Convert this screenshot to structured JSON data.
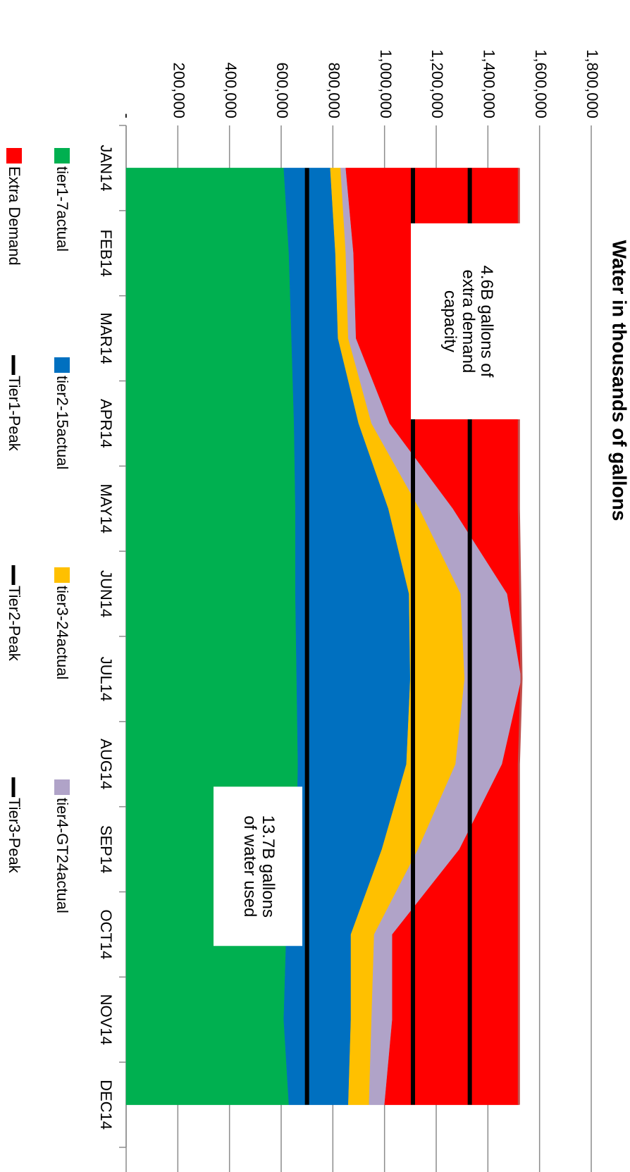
{
  "chart_data": {
    "type": "area",
    "stacked": true,
    "title": "Water in thousands of gallons",
    "categories": [
      "JAN14",
      "FEB14",
      "MAR14",
      "APR14",
      "MAY14",
      "JUN14",
      "JUL14",
      "AUG14",
      "SEP14",
      "OCT14",
      "NOV14",
      "DEC14"
    ],
    "ylim": [
      0,
      1800000
    ],
    "yticks": [
      0,
      200000,
      400000,
      600000,
      800000,
      1000000,
      1200000,
      1400000,
      1600000,
      1800000
    ],
    "ytick_labels": [
      "-",
      "200,000",
      "400,000",
      "600,000",
      "800,000",
      "1,000,000",
      "1,200,000",
      "1,400,000",
      "1,600,000",
      "1,800,000"
    ],
    "grid": true,
    "legend_position": "bottom",
    "series": [
      {
        "name": "tier1-7actual",
        "color": "#00B050",
        "values": [
          610000,
          630000,
          640000,
          650000,
          655000,
          655000,
          660000,
          665000,
          660000,
          620000,
          610000,
          630000
        ]
      },
      {
        "name": "tier2-15actual",
        "color": "#0070C0",
        "values": [
          180000,
          180000,
          180000,
          250000,
          360000,
          440000,
          440000,
          420000,
          330000,
          250000,
          260000,
          230000
        ]
      },
      {
        "name": "tier3-24actual",
        "color": "#FFC000",
        "values": [
          40000,
          40000,
          40000,
          50000,
          120000,
          200000,
          210000,
          190000,
          140000,
          90000,
          80000,
          80000
        ]
      },
      {
        "name": "tier4-GT24actual",
        "color": "#B0A3C8",
        "values": [
          20000,
          30000,
          30000,
          70000,
          130000,
          180000,
          220000,
          180000,
          160000,
          70000,
          80000,
          60000
        ]
      },
      {
        "name": "Extra Demand",
        "color": "#FF0000",
        "values": [
          670000,
          640000,
          630000,
          500000,
          255000,
          50000,
          0,
          65000,
          230000,
          490000,
          490000,
          520000
        ]
      }
    ],
    "peak_lines": [
      {
        "name": "Tier1-Peak",
        "color": "#000000",
        "value": 700000
      },
      {
        "name": "Tier2-Peak",
        "color": "#000000",
        "value": 1110000
      },
      {
        "name": "Tier3-Peak",
        "color": "#000000",
        "value": 1330000
      }
    ],
    "annotations": [
      {
        "text": "4.6B gallons of\nextra demand\ncapacity",
        "month": 2.3,
        "value": 1320000
      },
      {
        "text": "13.7B gallons\nof water used",
        "month": 8.7,
        "value": 510000
      }
    ]
  }
}
